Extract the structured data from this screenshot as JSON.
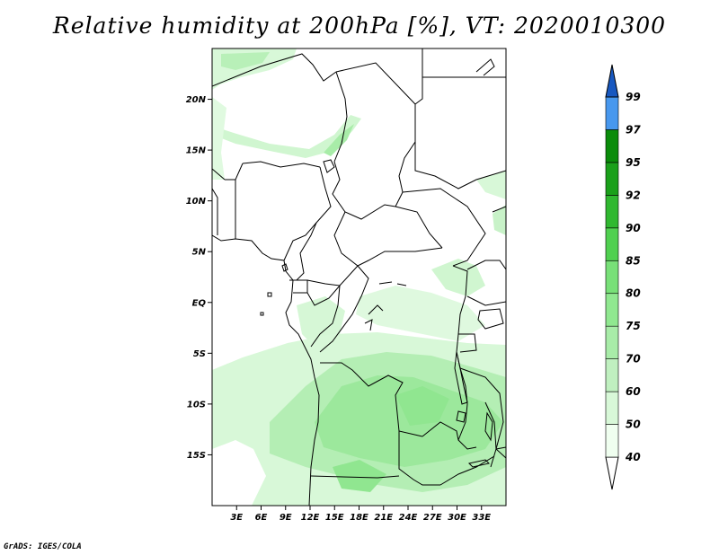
{
  "title": "Relative humidity at 200hPa [%], VT: 2020010300",
  "credit": "GrADS: IGES/COLA",
  "map": {
    "lon_range": [
      0,
      36
    ],
    "lat_range": [
      -20,
      25
    ],
    "lat_ticks": [
      {
        "value": 20,
        "label": "20N"
      },
      {
        "value": 15,
        "label": "15N"
      },
      {
        "value": 10,
        "label": "10N"
      },
      {
        "value": 5,
        "label": "5N"
      },
      {
        "value": 0,
        "label": "EQ"
      },
      {
        "value": -5,
        "label": "5S"
      },
      {
        "value": -10,
        "label": "10S"
      },
      {
        "value": -15,
        "label": "15S"
      }
    ],
    "lon_ticks": [
      {
        "value": 3,
        "label": "3E"
      },
      {
        "value": 6,
        "label": "6E"
      },
      {
        "value": 9,
        "label": "9E"
      },
      {
        "value": 12,
        "label": "12E"
      },
      {
        "value": 15,
        "label": "15E"
      },
      {
        "value": 18,
        "label": "18E"
      },
      {
        "value": 21,
        "label": "21E"
      },
      {
        "value": 24,
        "label": "24E"
      },
      {
        "value": 27,
        "label": "27E"
      },
      {
        "value": 30,
        "label": "30E"
      },
      {
        "value": 33,
        "label": "33E"
      }
    ]
  },
  "colorbar": {
    "levels": [
      {
        "label": "40",
        "color": "#f0fff0"
      },
      {
        "label": "50",
        "color": "#d8f8d8"
      },
      {
        "label": "60",
        "color": "#c0f0c0"
      },
      {
        "label": "70",
        "color": "#a8eca8"
      },
      {
        "label": "75",
        "color": "#90e890"
      },
      {
        "label": "80",
        "color": "#78e078"
      },
      {
        "label": "85",
        "color": "#50d050"
      },
      {
        "label": "90",
        "color": "#30b830"
      },
      {
        "label": "92",
        "color": "#1aa01a"
      },
      {
        "label": "95",
        "color": "#0a8c0a"
      },
      {
        "label": "97",
        "color": "#4898ee"
      },
      {
        "label": "99",
        "color": "#2070d8"
      }
    ],
    "low_color": "#ffffff",
    "high_color": "#1858c0"
  }
}
